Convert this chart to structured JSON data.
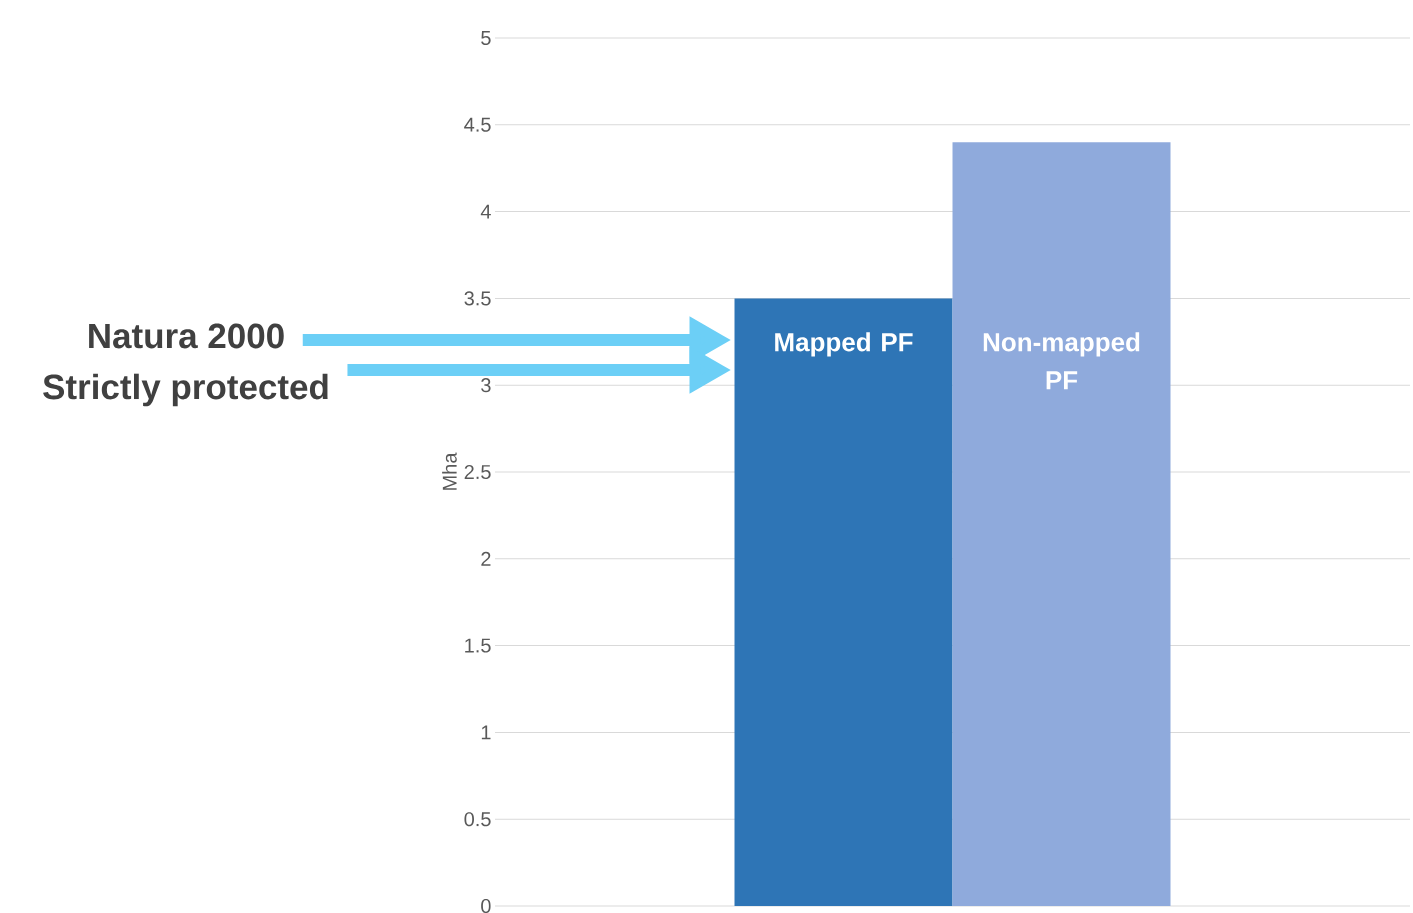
{
  "chart_data": {
    "type": "bar",
    "categories": [
      null
    ],
    "series": [
      {
        "name": "Mapped PF",
        "color": "#2e75b6",
        "values": [
          3.5
        ]
      },
      {
        "name": "Non-mapped PF",
        "color": "#8faadc",
        "values": [
          4.4
        ]
      }
    ],
    "ylabel": "Mha",
    "ylim": [
      0,
      5
    ],
    "yticks": [
      0,
      0.5,
      1,
      1.5,
      2,
      2.5,
      3,
      3.5,
      4,
      4.5,
      5
    ],
    "grid": "y",
    "annotations": [
      "Natura 2000",
      "Strictly protected"
    ]
  }
}
